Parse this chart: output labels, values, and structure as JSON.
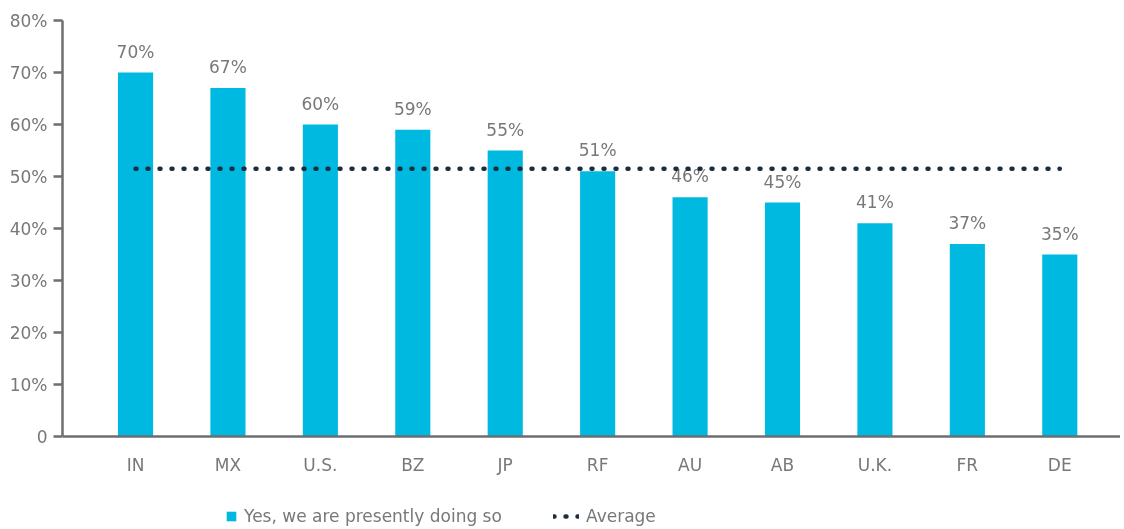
{
  "chart_data": {
    "type": "bar",
    "categories": [
      "IN",
      "MX",
      "U.S.",
      "BZ",
      "JP",
      "RF",
      "AU",
      "AB",
      "U.K.",
      "FR",
      "DE"
    ],
    "series": [
      {
        "name": "Yes, we are presently doing so",
        "color": "#00b9e0",
        "values": [
          70,
          67,
          60,
          59,
          55,
          51,
          46,
          45,
          41,
          37,
          35
        ],
        "value_labels": [
          "70%",
          "67%",
          "60%",
          "59%",
          "55%",
          "51%",
          "46%",
          "45%",
          "41%",
          "37%",
          "35%"
        ]
      },
      {
        "name": "Average",
        "type": "line",
        "color": "#1e2d3e",
        "line_style": "dotted",
        "values": [
          51.5,
          51.5,
          51.5,
          51.5,
          51.5,
          51.5,
          51.5,
          51.5,
          51.5,
          51.5,
          51.5
        ]
      }
    ],
    "ylim": [
      0,
      80
    ],
    "yticks": [
      0,
      {
        "value": 10,
        "label": "10%"
      },
      {
        "value": 20,
        "label": "20%"
      },
      {
        "value": 30,
        "label": "30%"
      },
      {
        "value": 40,
        "label": "40%"
      },
      {
        "value": 50,
        "label": "50%"
      },
      {
        "value": 60,
        "label": "60%"
      },
      {
        "value": 70,
        "label": "70%"
      },
      {
        "value": 80,
        "label": "80%"
      }
    ],
    "grid": false,
    "legend": "bottom"
  }
}
